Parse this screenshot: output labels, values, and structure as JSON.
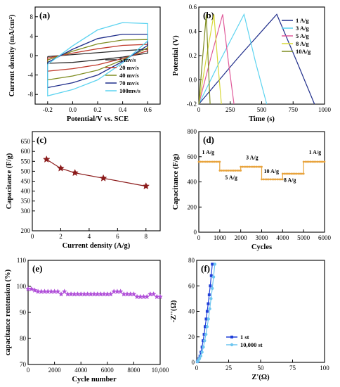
{
  "chart_data": [
    {
      "id": "a",
      "label": "(a)",
      "type": "line",
      "xlabel": "Potential/V vs. SCE",
      "ylabel": "Current density (mA/cm²)",
      "xlim": [
        -0.3,
        0.7
      ],
      "ylim": [
        -10,
        10
      ],
      "xticks": [
        "-0.2",
        "0.0",
        "0.2",
        "0.4",
        "0.6"
      ],
      "yticks": [
        "8",
        "4",
        "0",
        "-4",
        "-8"
      ],
      "legend": "bottom-right",
      "series": [
        {
          "name": "5 mv/s",
          "color": "#2b2b2b",
          "x": [
            -0.2,
            0.0,
            0.2,
            0.4,
            0.6,
            0.6,
            0.4,
            0.2,
            0.0,
            -0.2,
            -0.2
          ],
          "y": [
            -0.2,
            0.2,
            0.6,
            1.0,
            1.3,
            0.5,
            -0.3,
            -0.9,
            -1.4,
            -1.6,
            -0.2
          ]
        },
        {
          "name": "20 mv/s",
          "color": "#c0392b",
          "x": [
            -0.2,
            0.0,
            0.2,
            0.4,
            0.6,
            0.6,
            0.4,
            0.2,
            0.0,
            -0.2,
            -0.2
          ],
          "y": [
            -0.5,
            0.5,
            1.4,
            2.1,
            2.3,
            1.0,
            -0.6,
            -1.9,
            -2.7,
            -3.2,
            -0.5
          ]
        },
        {
          "name": "40 mv/s",
          "color": "#7e8c20",
          "x": [
            -0.2,
            0.0,
            0.2,
            0.4,
            0.6,
            0.6,
            0.4,
            0.2,
            0.0,
            -0.2,
            -0.2
          ],
          "y": [
            -0.9,
            0.9,
            2.4,
            3.2,
            3.3,
            1.6,
            -0.9,
            -3.0,
            -4.2,
            -5.0,
            -0.9
          ]
        },
        {
          "name": "70 mv/s",
          "color": "#1f2d8a",
          "x": [
            -0.2,
            0.0,
            0.2,
            0.4,
            0.6,
            0.6,
            0.4,
            0.2,
            0.0,
            -0.2,
            -0.2
          ],
          "y": [
            -1.4,
            1.3,
            3.5,
            4.4,
            4.4,
            2.1,
            -1.2,
            -4.0,
            -5.6,
            -6.6,
            -1.4
          ]
        },
        {
          "name": "100mv/s",
          "color": "#5bd3f0",
          "x": [
            -0.2,
            0.0,
            0.2,
            0.4,
            0.6,
            0.6,
            0.4,
            0.2,
            0.0,
            -0.2,
            -0.2
          ],
          "y": [
            -1.8,
            2.0,
            5.3,
            6.8,
            6.6,
            3.0,
            -1.5,
            -5.0,
            -7.0,
            -8.3,
            -1.8
          ]
        }
      ]
    },
    {
      "id": "b",
      "label": "(b)",
      "type": "line",
      "xlabel": "Time (s)",
      "ylabel": "Potential (V)",
      "xlim": [
        0,
        1000
      ],
      "ylim": [
        -0.2,
        0.6
      ],
      "xticks": [
        "0",
        "250",
        "500",
        "750",
        "1000"
      ],
      "yticks": [
        "-0.2",
        "0.0",
        "0.2",
        "0.4",
        "0.6"
      ],
      "legend": "top-right",
      "series": [
        {
          "name": "1 A/g",
          "color": "#1f2d8a",
          "x": [
            0,
            310,
            620,
            780,
            920
          ],
          "y": [
            -0.2,
            0.18,
            0.54,
            0.15,
            -0.2
          ]
        },
        {
          "name": "3 A/g",
          "color": "#5bd3f0",
          "x": [
            0,
            180,
            360,
            450,
            540
          ],
          "y": [
            -0.2,
            0.18,
            0.54,
            0.15,
            -0.2
          ]
        },
        {
          "name": "5 A/g",
          "color": "#e05a9a",
          "x": [
            0,
            95,
            190,
            235,
            280
          ],
          "y": [
            -0.2,
            0.18,
            0.54,
            0.15,
            -0.2
          ]
        },
        {
          "name": "8 A/g",
          "color": "#d8d838",
          "x": [
            0,
            60,
            120,
            150,
            180
          ],
          "y": [
            -0.2,
            0.18,
            0.54,
            0.15,
            -0.2
          ]
        },
        {
          "name": "10A/g",
          "color": "#7e8c20",
          "x": [
            0,
            30,
            60,
            75,
            90
          ],
          "y": [
            -0.2,
            0.18,
            0.54,
            0.15,
            -0.2
          ]
        }
      ]
    },
    {
      "id": "c",
      "label": "(c)",
      "type": "line",
      "xlabel": "Current density (A/g)",
      "ylabel": "Capacitance (F/g)",
      "xlim": [
        0,
        9
      ],
      "ylim": [
        200,
        700
      ],
      "xticks": [
        "0",
        "2",
        "4",
        "6",
        "8"
      ],
      "yticks": [
        "200",
        "300",
        "350",
        "400",
        "450",
        "500",
        "550",
        "600",
        "650"
      ],
      "series": [
        {
          "name": "",
          "color": "#8b1a1a",
          "x": [
            1,
            2,
            3,
            5,
            8
          ],
          "y": [
            560,
            515,
            492,
            465,
            425
          ]
        }
      ]
    },
    {
      "id": "d",
      "label": "(d)",
      "type": "line",
      "xlabel": "Cycles",
      "ylabel": "Capacitance (F/g)",
      "xlim": [
        0,
        6000
      ],
      "ylim": [
        0,
        800
      ],
      "xticks": [
        "0",
        "1000",
        "2000",
        "3000",
        "4000",
        "5000",
        "6000"
      ],
      "yticks": [
        "0",
        "200",
        "400",
        "600",
        "800"
      ],
      "series": [
        {
          "name": "",
          "color": "#e8a33c",
          "x": [
            0,
            1000,
            1000,
            2000,
            2000,
            3000,
            3000,
            4000,
            4000,
            5000,
            5000,
            6000
          ],
          "y": [
            560,
            560,
            490,
            490,
            520,
            520,
            420,
            420,
            465,
            465,
            560,
            560
          ]
        }
      ],
      "annotations": [
        {
          "text": "1 A/g",
          "x": 150,
          "y": 620
        },
        {
          "text": "5 A/g",
          "x": 1250,
          "y": 420
        },
        {
          "text": "3 A/g",
          "x": 2250,
          "y": 580
        },
        {
          "text": "10 A/g",
          "x": 3100,
          "y": 470
        },
        {
          "text": "8 A/g",
          "x": 4050,
          "y": 400
        },
        {
          "text": "1 A/g",
          "x": 5250,
          "y": 620
        }
      ]
    },
    {
      "id": "e",
      "label": "(e)",
      "type": "scatter",
      "xlabel": "Cycle number",
      "ylabel": "capacitance rentension (%)",
      "xlim": [
        0,
        10000
      ],
      "ylim": [
        70,
        110
      ],
      "xticks": [
        "0",
        "2000",
        "4000",
        "6000",
        "8000",
        "10,000"
      ],
      "yticks": [
        "70",
        "80",
        "90",
        "100",
        "110"
      ],
      "series": [
        {
          "name": "",
          "color": "#b04fd8",
          "x": [
            0,
            250,
            500,
            750,
            1000,
            1250,
            1500,
            1750,
            2000,
            2250,
            2500,
            2750,
            3000,
            3250,
            3500,
            3750,
            4000,
            4250,
            4500,
            4750,
            5000,
            5250,
            5500,
            5750,
            6000,
            6250,
            6500,
            6750,
            7000,
            7250,
            7500,
            7750,
            8000,
            8250,
            8500,
            8750,
            9000,
            9250,
            9500,
            9750,
            10000
          ],
          "y": [
            99,
            99,
            98.5,
            98,
            98,
            98,
            98,
            98,
            98,
            98,
            97,
            98,
            97,
            97,
            97,
            97,
            97,
            97,
            97,
            97,
            97,
            97,
            97,
            97,
            97,
            97,
            98,
            98,
            98,
            97,
            97,
            97,
            97,
            96,
            96,
            96,
            96,
            97,
            97,
            96,
            96
          ]
        }
      ]
    },
    {
      "id": "f",
      "label": "(f)",
      "type": "line",
      "xlabel": "Z'(Ω)",
      "ylabel": "-Z''(Ω)",
      "xlim": [
        0,
        100
      ],
      "ylim": [
        0,
        80
      ],
      "xticks": [
        "0",
        "25",
        "50",
        "75",
        "100"
      ],
      "yticks": [
        "0",
        "20",
        "40",
        "60",
        "80"
      ],
      "legend": "bottom-center",
      "series": [
        {
          "name": "1 st",
          "color": "#1f3fd8",
          "x": [
            0.5,
            1,
            1.8,
            2.6,
            3.4,
            4.2,
            5,
            5.8,
            6.6,
            7.4,
            8.2,
            9,
            9.8,
            10.6,
            11.4,
            12.2
          ],
          "y": [
            0.5,
            1.5,
            3,
            5,
            8,
            12,
            17,
            22,
            28,
            34,
            40,
            46,
            53,
            60,
            68,
            77
          ]
        },
        {
          "name": "10,000 st",
          "color": "#6ec6f0",
          "x": [
            0.5,
            1.2,
            2.2,
            3.2,
            4.2,
            5.2,
            6.2,
            7.2,
            8.2,
            9.2,
            10.2,
            11.2,
            12.2,
            13.2,
            14.2
          ],
          "y": [
            0.5,
            1.5,
            3,
            5,
            8,
            12,
            17,
            22,
            28,
            34,
            42,
            50,
            58,
            67,
            77
          ]
        }
      ]
    }
  ]
}
